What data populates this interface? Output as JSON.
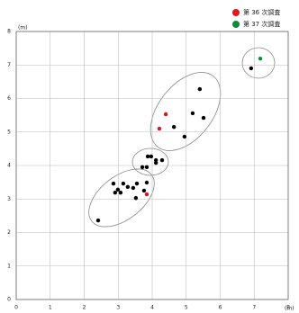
{
  "chart_data": {
    "type": "scatter",
    "x_unit": "(m)",
    "y_unit": "(m)",
    "xlim": [
      0,
      8
    ],
    "ylim": [
      0,
      8
    ],
    "xticks": [
      0,
      1,
      2,
      3,
      4,
      5,
      6,
      7,
      8
    ],
    "yticks": [
      0,
      1,
      2,
      3,
      4,
      5,
      6,
      7,
      8
    ],
    "grid": true,
    "legend": "top-right",
    "series": [
      {
        "color": "#000000",
        "x": [
          2.41,
          2.86,
          2.99,
          3.15,
          3.28,
          3.44,
          3.55,
          3.52,
          3.07,
          2.91,
          3.76,
          3.84,
          3.71,
          3.84,
          3.87,
          3.97,
          4.11,
          4.11,
          4.29,
          4.64,
          4.95,
          5.19,
          5.4,
          5.51,
          6.91
        ],
        "y": [
          2.36,
          3.46,
          3.28,
          3.46,
          3.36,
          3.33,
          3.46,
          3.03,
          3.19,
          3.19,
          3.25,
          3.49,
          3.95,
          3.95,
          4.27,
          4.27,
          4.16,
          4.08,
          4.16,
          5.15,
          4.86,
          5.56,
          6.28,
          5.42,
          6.9
        ]
      },
      {
        "name": "第 36 次調査",
        "color": "#e0141e",
        "x": [
          3.84,
          4.4,
          4.21
        ],
        "y": [
          3.14,
          5.53,
          5.1
        ]
      },
      {
        "name": "第 37 次調査",
        "color": "#0a8a3a",
        "x": [
          7.18
        ],
        "y": [
          7.19
        ]
      }
    ]
  }
}
